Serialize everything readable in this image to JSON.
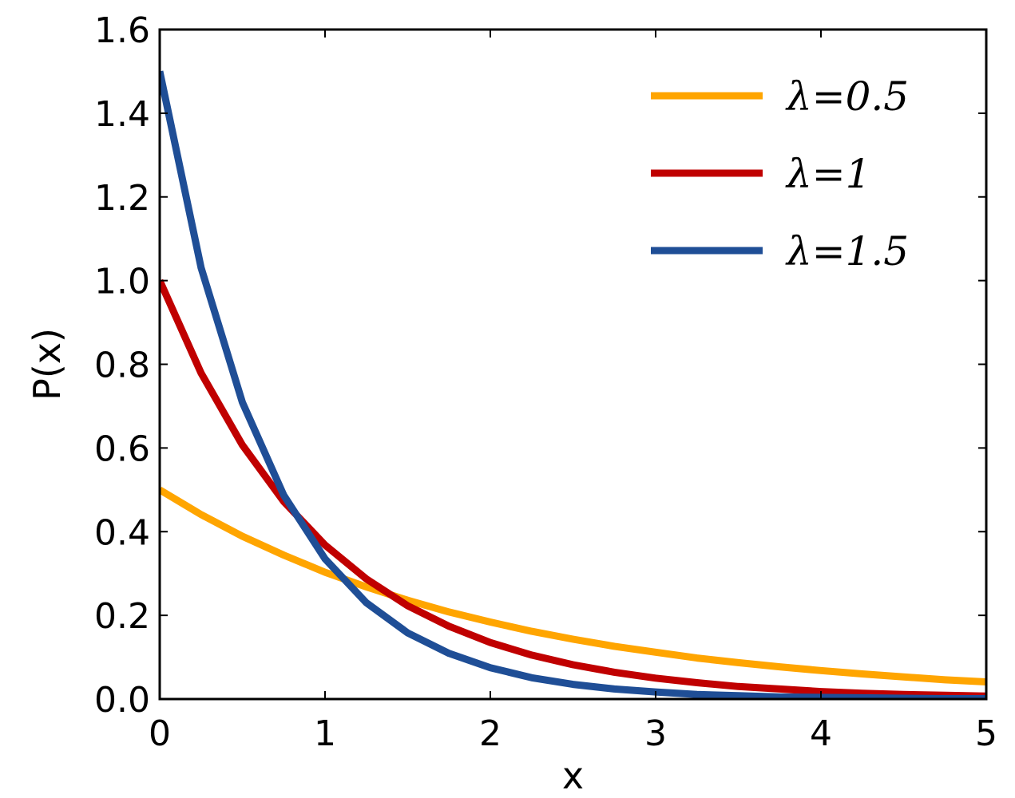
{
  "chart_data": {
    "type": "line",
    "xlabel": "x",
    "ylabel": "P(x)",
    "xlim": [
      0,
      5
    ],
    "ylim": [
      0,
      1.6
    ],
    "x_ticks": [
      0,
      1,
      2,
      3,
      4,
      5
    ],
    "x_tick_labels": [
      "0",
      "1",
      "2",
      "3",
      "4",
      "5"
    ],
    "y_ticks": [
      0,
      0.2,
      0.4,
      0.6,
      0.8,
      1.0,
      1.2,
      1.4,
      1.6
    ],
    "y_tick_labels": [
      "0.0",
      "0.2",
      "0.4",
      "0.6",
      "0.8",
      "1.0",
      "1.2",
      "1.4",
      "1.6"
    ],
    "grid": false,
    "legend_position": "top-right",
    "series": [
      {
        "name": "λ=0.5",
        "color": "#ffa500",
        "x": [
          0,
          0.25,
          0.5,
          0.75,
          1,
          1.25,
          1.5,
          1.75,
          2,
          2.25,
          2.5,
          2.75,
          3,
          3.25,
          3.5,
          3.75,
          4,
          4.25,
          4.5,
          4.75,
          5
        ],
        "y": [
          0.5,
          0.441,
          0.389,
          0.344,
          0.303,
          0.268,
          0.236,
          0.208,
          0.184,
          0.162,
          0.143,
          0.126,
          0.112,
          0.098,
          0.087,
          0.077,
          0.068,
          0.06,
          0.053,
          0.046,
          0.041
        ]
      },
      {
        "name": "λ=1",
        "color": "#c00000",
        "x": [
          0,
          0.25,
          0.5,
          0.75,
          1,
          1.25,
          1.5,
          1.75,
          2,
          2.25,
          2.5,
          2.75,
          3,
          3.25,
          3.5,
          3.75,
          4,
          4.25,
          4.5,
          4.75,
          5
        ],
        "y": [
          1.0,
          0.779,
          0.607,
          0.472,
          0.368,
          0.287,
          0.223,
          0.174,
          0.135,
          0.105,
          0.082,
          0.064,
          0.05,
          0.039,
          0.03,
          0.024,
          0.018,
          0.014,
          0.011,
          0.009,
          0.007
        ]
      },
      {
        "name": "λ=1.5",
        "color": "#1f4e96",
        "x": [
          0,
          0.25,
          0.5,
          0.75,
          1,
          1.25,
          1.5,
          1.75,
          2,
          2.25,
          2.5,
          2.75,
          3,
          3.25,
          3.5,
          3.75,
          4,
          4.25,
          4.5,
          4.75,
          5
        ],
        "y": [
          1.5,
          1.031,
          0.709,
          0.487,
          0.335,
          0.23,
          0.158,
          0.109,
          0.075,
          0.051,
          0.035,
          0.024,
          0.017,
          0.011,
          0.008,
          0.005,
          0.004,
          0.003,
          0.002,
          0.001,
          0.001
        ]
      }
    ]
  }
}
